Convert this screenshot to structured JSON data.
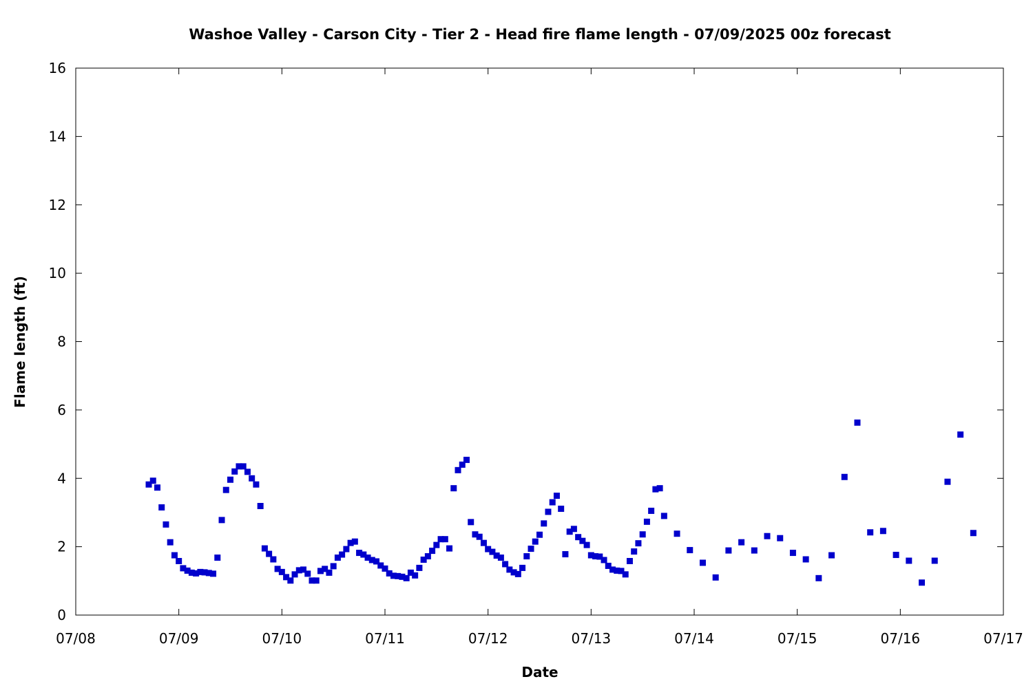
{
  "chart_data": {
    "type": "scatter",
    "title": "Washoe Valley - Carson City - Tier 2 - Head fire flame length - 07/09/2025 00z forecast",
    "xlabel": "Date",
    "ylabel": "Flame length (ft)",
    "x_ticks": [
      "07/08",
      "07/09",
      "07/10",
      "07/11",
      "07/12",
      "07/13",
      "07/14",
      "07/15",
      "07/16",
      "07/17"
    ],
    "y_ticks": [
      "0",
      "2",
      "4",
      "6",
      "8",
      "10",
      "12",
      "14",
      "16"
    ],
    "xlim": [
      "07/08 00:00",
      "07/17 00:00"
    ],
    "ylim": [
      0,
      16
    ],
    "grid": false,
    "marker_color": "#0000cc",
    "series": [
      {
        "marker": "square",
        "x": [
          "07/08 17:00",
          "07/08 18:00",
          "07/08 19:00",
          "07/08 20:00",
          "07/08 21:00",
          "07/08 22:00",
          "07/08 23:00",
          "07/09 00:00",
          "07/09 01:00",
          "07/09 02:00",
          "07/09 03:00",
          "07/09 04:00",
          "07/09 05:00",
          "07/09 06:00",
          "07/09 07:00",
          "07/09 08:00",
          "07/09 09:00",
          "07/09 10:00",
          "07/09 11:00",
          "07/09 12:00",
          "07/09 13:00",
          "07/09 14:00",
          "07/09 15:00",
          "07/09 16:00",
          "07/09 17:00",
          "07/09 18:00",
          "07/09 19:00",
          "07/09 20:00",
          "07/09 21:00",
          "07/09 22:00",
          "07/09 23:00",
          "07/10 00:00",
          "07/10 01:00",
          "07/10 02:00",
          "07/10 03:00",
          "07/10 04:00",
          "07/10 05:00",
          "07/10 06:00",
          "07/10 07:00",
          "07/10 08:00",
          "07/10 09:00",
          "07/10 10:00",
          "07/10 11:00",
          "07/10 12:00",
          "07/10 13:00",
          "07/10 14:00",
          "07/10 15:00",
          "07/10 16:00",
          "07/10 17:00",
          "07/10 18:00",
          "07/10 19:00",
          "07/10 20:00",
          "07/10 21:00",
          "07/10 22:00",
          "07/10 23:00",
          "07/11 00:00",
          "07/11 01:00",
          "07/11 02:00",
          "07/11 03:00",
          "07/11 04:00",
          "07/11 05:00",
          "07/11 06:00",
          "07/11 07:00",
          "07/11 08:00",
          "07/11 09:00",
          "07/11 10:00",
          "07/11 11:00",
          "07/11 12:00",
          "07/11 13:00",
          "07/11 14:00",
          "07/11 15:00",
          "07/11 16:00",
          "07/11 17:00",
          "07/11 18:00",
          "07/11 19:00",
          "07/11 20:00",
          "07/11 21:00",
          "07/11 22:00",
          "07/11 23:00",
          "07/12 00:00",
          "07/12 01:00",
          "07/12 02:00",
          "07/12 03:00",
          "07/12 04:00",
          "07/12 05:00",
          "07/12 06:00",
          "07/12 07:00",
          "07/12 08:00",
          "07/12 09:00",
          "07/12 10:00",
          "07/12 11:00",
          "07/12 12:00",
          "07/12 13:00",
          "07/12 14:00",
          "07/12 15:00",
          "07/12 16:00",
          "07/12 17:00",
          "07/12 18:00",
          "07/12 19:00",
          "07/12 20:00",
          "07/12 21:00",
          "07/12 22:00",
          "07/12 23:00",
          "07/13 00:00",
          "07/13 01:00",
          "07/13 02:00",
          "07/13 03:00",
          "07/13 04:00",
          "07/13 05:00",
          "07/13 06:00",
          "07/13 07:00",
          "07/13 08:00",
          "07/13 09:00",
          "07/13 10:00",
          "07/13 11:00",
          "07/13 12:00",
          "07/13 13:00",
          "07/13 14:00",
          "07/13 15:00",
          "07/13 16:00",
          "07/13 17:00",
          "07/13 20:00",
          "07/13 23:00",
          "07/14 02:00",
          "07/14 05:00",
          "07/14 08:00",
          "07/14 11:00",
          "07/14 14:00",
          "07/14 17:00",
          "07/14 20:00",
          "07/14 23:00",
          "07/15 02:00",
          "07/15 05:00",
          "07/15 08:00",
          "07/15 11:00",
          "07/15 14:00",
          "07/15 17:00",
          "07/15 20:00",
          "07/15 23:00",
          "07/16 02:00",
          "07/16 05:00",
          "07/16 08:00",
          "07/16 11:00",
          "07/16 14:00",
          "07/16 17:00"
        ],
        "y": [
          3.82,
          3.93,
          3.73,
          3.15,
          2.65,
          2.13,
          1.75,
          1.58,
          1.37,
          1.3,
          1.24,
          1.22,
          1.26,
          1.25,
          1.23,
          1.21,
          1.68,
          2.78,
          3.66,
          3.96,
          4.2,
          4.35,
          4.35,
          4.19,
          4.0,
          3.82,
          3.19,
          1.95,
          1.79,
          1.63,
          1.35,
          1.26,
          1.11,
          1.01,
          1.19,
          1.31,
          1.33,
          1.21,
          1.01,
          1.01,
          1.29,
          1.35,
          1.24,
          1.43,
          1.68,
          1.77,
          1.93,
          2.11,
          2.15,
          1.82,
          1.77,
          1.68,
          1.61,
          1.57,
          1.45,
          1.36,
          1.22,
          1.15,
          1.14,
          1.12,
          1.08,
          1.24,
          1.16,
          1.38,
          1.62,
          1.72,
          1.88,
          2.05,
          2.22,
          2.22,
          1.95,
          3.71,
          4.24,
          4.4,
          4.54,
          2.72,
          2.36,
          2.29,
          2.11,
          1.93,
          1.85,
          1.74,
          1.68,
          1.49,
          1.33,
          1.25,
          1.2,
          1.38,
          1.72,
          1.94,
          2.15,
          2.35,
          2.68,
          3.02,
          3.3,
          3.49,
          3.11,
          1.78,
          2.44,
          2.52,
          2.28,
          2.17,
          2.05,
          1.75,
          1.72,
          1.71,
          1.61,
          1.44,
          1.33,
          1.3,
          1.29,
          1.19,
          1.58,
          1.86,
          2.1,
          2.36,
          2.73,
          3.05,
          3.68,
          3.71,
          2.9,
          2.38,
          1.9,
          1.53,
          1.1,
          1.89,
          2.13,
          1.89,
          2.31,
          2.25,
          1.82,
          1.63,
          1.08,
          1.75,
          4.04,
          5.63,
          2.42,
          2.46,
          1.76,
          1.59,
          0.95,
          1.59,
          3.9,
          5.28,
          2.4
        ]
      }
    ]
  }
}
